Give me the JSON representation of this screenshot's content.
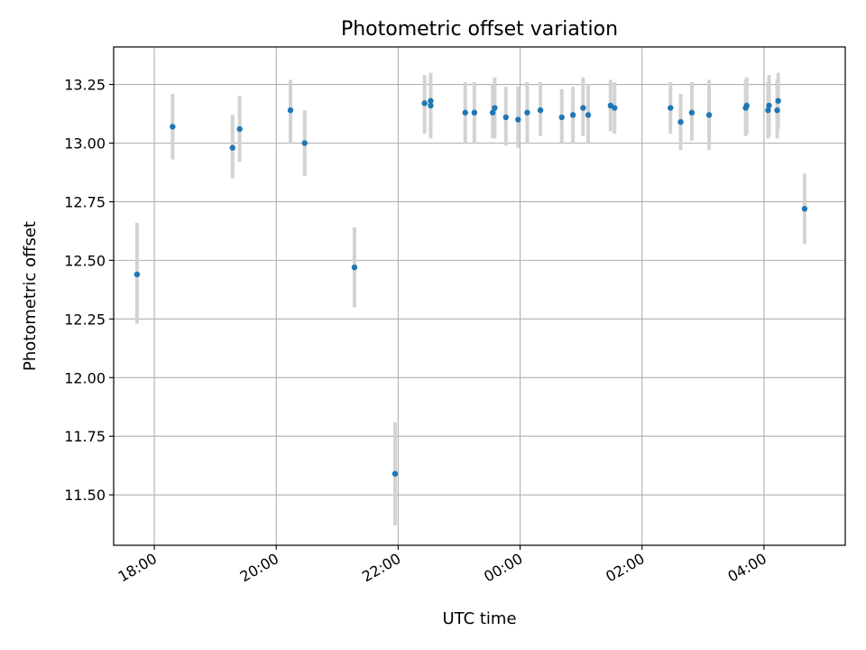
{
  "chart_data": {
    "type": "scatter",
    "title": "Photometric offset variation",
    "xlabel": "UTC time",
    "ylabel": "Photometric offset",
    "x_unit": "hours",
    "xlim": [
      "17:20",
      "05:20"
    ],
    "ylim": [
      11.285,
      13.41
    ],
    "x_ticks": [
      {
        "value": "18:00",
        "label": "18:00"
      },
      {
        "value": "20:00",
        "label": "20:00"
      },
      {
        "value": "22:00",
        "label": "22:00"
      },
      {
        "value": "00:00",
        "label": "00:00"
      },
      {
        "value": "02:00",
        "label": "02:00"
      },
      {
        "value": "04:00",
        "label": "04:00"
      }
    ],
    "y_ticks": [
      {
        "value": 11.5,
        "label": "11.50"
      },
      {
        "value": 11.75,
        "label": "11.75"
      },
      {
        "value": 12.0,
        "label": "12.00"
      },
      {
        "value": 12.25,
        "label": "12.25"
      },
      {
        "value": 12.5,
        "label": "12.50"
      },
      {
        "value": 12.75,
        "label": "12.75"
      },
      {
        "value": 13.0,
        "label": "13.00"
      },
      {
        "value": 13.25,
        "label": "13.25"
      }
    ],
    "grid": true,
    "marker_color": "#1f77b4",
    "errorbar_color": "#d3d3d3",
    "points": [
      {
        "x": "17:43",
        "y": 12.44,
        "lo": 12.23,
        "hi": 12.66
      },
      {
        "x": "18:18",
        "y": 13.07,
        "lo": 12.93,
        "hi": 13.21
      },
      {
        "x": "19:17",
        "y": 12.98,
        "lo": 12.85,
        "hi": 13.12
      },
      {
        "x": "19:24",
        "y": 13.06,
        "lo": 12.92,
        "hi": 13.2
      },
      {
        "x": "20:14",
        "y": 13.14,
        "lo": 13.0,
        "hi": 13.27
      },
      {
        "x": "20:28",
        "y": 13.0,
        "lo": 12.86,
        "hi": 13.14
      },
      {
        "x": "21:17",
        "y": 12.47,
        "lo": 12.3,
        "hi": 12.64
      },
      {
        "x": "21:57",
        "y": 11.59,
        "lo": 11.37,
        "hi": 11.81
      },
      {
        "x": "22:26",
        "y": 13.17,
        "lo": 13.04,
        "hi": 13.29
      },
      {
        "x": "22:32",
        "y": 13.18,
        "lo": 13.05,
        "hi": 13.3
      },
      {
        "x": "22:32",
        "y": 13.16,
        "lo": 13.02,
        "hi": 13.29
      },
      {
        "x": "23:06",
        "y": 13.13,
        "lo": 13.0,
        "hi": 13.26
      },
      {
        "x": "23:15",
        "y": 13.13,
        "lo": 13.0,
        "hi": 13.26
      },
      {
        "x": "23:33",
        "y": 13.13,
        "lo": 13.02,
        "hi": 13.25
      },
      {
        "x": "23:35",
        "y": 13.15,
        "lo": 13.02,
        "hi": 13.28
      },
      {
        "x": "23:46",
        "y": 13.11,
        "lo": 12.99,
        "hi": 13.24
      },
      {
        "x": "23:58",
        "y": 13.1,
        "lo": 12.98,
        "hi": 13.24
      },
      {
        "x": "00:07",
        "y": 13.13,
        "lo": 13.0,
        "hi": 13.26
      },
      {
        "x": "00:20",
        "y": 13.14,
        "lo": 13.03,
        "hi": 13.26
      },
      {
        "x": "00:41",
        "y": 13.11,
        "lo": 13.0,
        "hi": 13.23
      },
      {
        "x": "00:52",
        "y": 13.12,
        "lo": 13.0,
        "hi": 13.24
      },
      {
        "x": "01:02",
        "y": 13.15,
        "lo": 13.03,
        "hi": 13.28
      },
      {
        "x": "01:07",
        "y": 13.12,
        "lo": 13.0,
        "hi": 13.25
      },
      {
        "x": "01:29",
        "y": 13.16,
        "lo": 13.05,
        "hi": 13.27
      },
      {
        "x": "01:33",
        "y": 13.15,
        "lo": 13.04,
        "hi": 13.26
      },
      {
        "x": "02:28",
        "y": 13.15,
        "lo": 13.04,
        "hi": 13.26
      },
      {
        "x": "02:38",
        "y": 13.09,
        "lo": 12.97,
        "hi": 13.21
      },
      {
        "x": "02:49",
        "y": 13.13,
        "lo": 13.01,
        "hi": 13.26
      },
      {
        "x": "03:06",
        "y": 13.12,
        "lo": 12.97,
        "hi": 13.27
      },
      {
        "x": "03:42",
        "y": 13.15,
        "lo": 13.03,
        "hi": 13.27
      },
      {
        "x": "03:43",
        "y": 13.16,
        "lo": 13.04,
        "hi": 13.28
      },
      {
        "x": "04:04",
        "y": 13.14,
        "lo": 13.02,
        "hi": 13.26
      },
      {
        "x": "04:05",
        "y": 13.16,
        "lo": 13.03,
        "hi": 13.29
      },
      {
        "x": "04:13",
        "y": 13.14,
        "lo": 13.02,
        "hi": 13.27
      },
      {
        "x": "04:14",
        "y": 13.18,
        "lo": 13.06,
        "hi": 13.3
      },
      {
        "x": "04:40",
        "y": 12.72,
        "lo": 12.57,
        "hi": 12.87
      }
    ]
  }
}
